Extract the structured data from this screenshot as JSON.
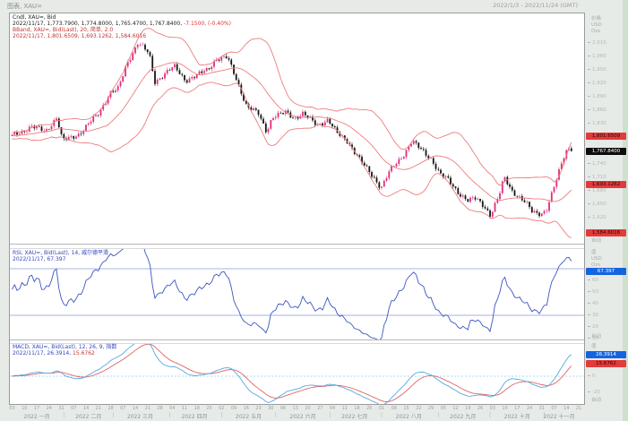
{
  "window": {
    "title": "图表, XAU=",
    "date_range": "2022/1/3 - 2022/11/24 (GMT)"
  },
  "price_pane": {
    "legend": {
      "cndl_line": "Cndl, XAU=, Bid",
      "ohlc_text": "2022/11/17, 1,773.7900, 1,774.8000, 1,765.4700, 1,767.8400, ",
      "change_text": "-7.1500, (-0.40%)",
      "bband_line": "BBand, XAU=, Bid(Last), 20, 简单, 2.0",
      "bband_values": "2022/11/17, 1,801.6509, 1,693.1262, 1,584.6016"
    },
    "axis": {
      "header": [
        "价格",
        "USD",
        "Ozs"
      ],
      "auto_label": "自动",
      "ticks": [
        {
          "label": "2,010",
          "value": 2010
        },
        {
          "label": "1,980",
          "value": 1980
        },
        {
          "label": "1,950",
          "value": 1950
        },
        {
          "label": "1,920",
          "value": 1920
        },
        {
          "label": "1,890",
          "value": 1890
        },
        {
          "label": "1,860",
          "value": 1860
        },
        {
          "label": "1,830",
          "value": 1830
        },
        {
          "label": "1,740",
          "value": 1740
        },
        {
          "label": "1,710",
          "value": 1710
        },
        {
          "label": "1,680",
          "value": 1680
        },
        {
          "label": "1,650",
          "value": 1650
        },
        {
          "label": "1,620",
          "value": 1620
        }
      ],
      "flags": [
        {
          "text": "1,801.6509",
          "value": 1801.6509,
          "type": "band"
        },
        {
          "text": "1,767.8400",
          "value": 1767.84,
          "type": "last"
        },
        {
          "text": "1,693.1262",
          "value": 1693.1262,
          "type": "band"
        },
        {
          "text": "1,584.6016",
          "value": 1584.6016,
          "type": "band"
        }
      ]
    }
  },
  "rsi_pane": {
    "legend": {
      "line1": "RSI, XAU=, Bid(Last), 14, 威尔德平滑",
      "line2": "2022/11/17, 67.397"
    },
    "axis": {
      "header": [
        "值",
        "USD",
        "Ozs"
      ],
      "auto_label": "自动",
      "ticks": [
        {
          "label": "60",
          "value": 60
        },
        {
          "label": "50",
          "value": 50
        },
        {
          "label": "40",
          "value": 40
        },
        {
          "label": "30",
          "value": 30
        },
        {
          "label": "20",
          "value": 20
        },
        {
          "label": "10",
          "value": 10
        }
      ],
      "flags": [
        {
          "text": "67.397",
          "value": 67.397,
          "type": "blue"
        }
      ]
    }
  },
  "macd_pane": {
    "legend": {
      "line1": "MACD, XAU=, Bid(Last), 12, 26, 9, 指数",
      "line2_prefix": "2022/11/17, 26.3914, ",
      "line2_signal": "15.6762"
    },
    "axis": {
      "header": [
        "值"
      ],
      "auto_label": "自动",
      "ticks": [
        {
          "label": "0",
          "value": 0
        },
        {
          "label": "-20",
          "value": -20
        }
      ],
      "flags": [
        {
          "text": "26.3914",
          "value": 26.3914,
          "type": "blue"
        },
        {
          "text": "15.6762",
          "value": 15.6762,
          "type": "redv"
        }
      ]
    }
  },
  "xaxis": {
    "day_labels": [
      "03",
      "10",
      "17",
      "24",
      "31",
      "07",
      "14",
      "21",
      "28",
      "07",
      "14",
      "21",
      "28",
      "04",
      "11",
      "18",
      "25",
      "02",
      "09",
      "16",
      "23",
      "30",
      "06",
      "13",
      "20",
      "27",
      "04",
      "11",
      "18",
      "25",
      "01",
      "08",
      "15",
      "22",
      "29",
      "05",
      "12",
      "19",
      "26",
      "03",
      "10",
      "17",
      "24",
      "31",
      "07",
      "14",
      "21"
    ],
    "months": [
      {
        "label": "2022 一月",
        "c": 10
      },
      {
        "label": "2022 二月",
        "c": 31
      },
      {
        "label": "2022 三月",
        "c": 52
      },
      {
        "label": "2022 四月",
        "c": 74
      },
      {
        "label": "2022 五月",
        "c": 96
      },
      {
        "label": "2022 六月",
        "c": 118
      },
      {
        "label": "2022 七月",
        "c": 139
      },
      {
        "label": "2022 八月",
        "c": 161
      },
      {
        "label": "2022 九月",
        "c": 183
      },
      {
        "label": "2022 十月",
        "c": 205
      },
      {
        "label": "2022 十一月",
        "c": 222
      }
    ],
    "month_boundaries": [
      21,
      41,
      64,
      85,
      107,
      129,
      150,
      173,
      194,
      216
    ]
  },
  "chart_data": {
    "type": "candlestick",
    "instrument": "XAU=",
    "quote_side": "Bid",
    "interval": "daily",
    "visible_range": "2022/1/3 - 2022/11/24 (GMT)",
    "candle_count": 228,
    "last_candle": {
      "date": "2022/11/17",
      "open": 1773.79,
      "high": 1774.8,
      "low": 1765.47,
      "close": 1767.84,
      "change": -7.15,
      "change_pct": -0.4
    },
    "close_path": [
      [
        0.0,
        1802
      ],
      [
        0.035,
        1822
      ],
      [
        0.06,
        1812
      ],
      [
        0.08,
        1843
      ],
      [
        0.09,
        1790
      ],
      [
        0.12,
        1806
      ],
      [
        0.155,
        1852
      ],
      [
        0.175,
        1898
      ],
      [
        0.19,
        1906
      ],
      [
        0.205,
        1962
      ],
      [
        0.225,
        2010
      ],
      [
        0.245,
        1985
      ],
      [
        0.255,
        1922
      ],
      [
        0.275,
        1943
      ],
      [
        0.29,
        1956
      ],
      [
        0.31,
        1926
      ],
      [
        0.33,
        1936
      ],
      [
        0.35,
        1950
      ],
      [
        0.365,
        1974
      ],
      [
        0.385,
        1976
      ],
      [
        0.4,
        1932
      ],
      [
        0.42,
        1866
      ],
      [
        0.44,
        1852
      ],
      [
        0.455,
        1812
      ],
      [
        0.465,
        1843
      ],
      [
        0.49,
        1854
      ],
      [
        0.505,
        1842
      ],
      [
        0.52,
        1851
      ],
      [
        0.545,
        1826
      ],
      [
        0.565,
        1838
      ],
      [
        0.58,
        1808
      ],
      [
        0.6,
        1790
      ],
      [
        0.625,
        1742
      ],
      [
        0.645,
        1712
      ],
      [
        0.66,
        1686
      ],
      [
        0.675,
        1722
      ],
      [
        0.7,
        1760
      ],
      [
        0.715,
        1790
      ],
      [
        0.73,
        1772
      ],
      [
        0.75,
        1750
      ],
      [
        0.765,
        1716
      ],
      [
        0.78,
        1703
      ],
      [
        0.8,
        1673
      ],
      [
        0.815,
        1656
      ],
      [
        0.83,
        1662
      ],
      [
        0.845,
        1645
      ],
      [
        0.855,
        1624
      ],
      [
        0.87,
        1664
      ],
      [
        0.88,
        1710
      ],
      [
        0.895,
        1678
      ],
      [
        0.905,
        1666
      ],
      [
        0.92,
        1649
      ],
      [
        0.93,
        1633
      ],
      [
        0.945,
        1629
      ],
      [
        0.955,
        1634
      ],
      [
        0.965,
        1670
      ],
      [
        0.975,
        1710
      ],
      [
        0.985,
        1752
      ],
      [
        0.993,
        1776
      ],
      [
        1.0,
        1768
      ]
    ],
    "indicators": {
      "bband": {
        "period": 20,
        "ma_type": "简单",
        "stdev": 2.0,
        "last_upper": 1801.6509,
        "last_middle": 1693.1262,
        "last_lower": 1584.6016
      },
      "rsi": {
        "period": 14,
        "smoothing": "威尔德平滑",
        "last": 67.397,
        "levels": [
          70,
          30
        ]
      },
      "macd": {
        "fast": 12,
        "slow": 26,
        "signal": 9,
        "ma_type": "指数",
        "last_macd": 26.3914,
        "last_signal": 15.6762
      }
    },
    "price_axis": {
      "visible_min": 1545,
      "visible_max": 2075,
      "tick_step": 30
    },
    "rsi_axis": {
      "visible_min": 10,
      "visible_max": 83
    },
    "macd_axis": {
      "visible_min": -30,
      "visible_max": 40
    }
  },
  "colors": {
    "candle_up": "#df2f7b",
    "candle_down": "#161616",
    "bband": "#ec7d7d",
    "rsi_line": "#3c55c0",
    "rsi_levels": "#8a9ada",
    "macd_line": "#56a8e0",
    "macd_signal": "#e06262",
    "macd_zero": "#86d2ee"
  }
}
